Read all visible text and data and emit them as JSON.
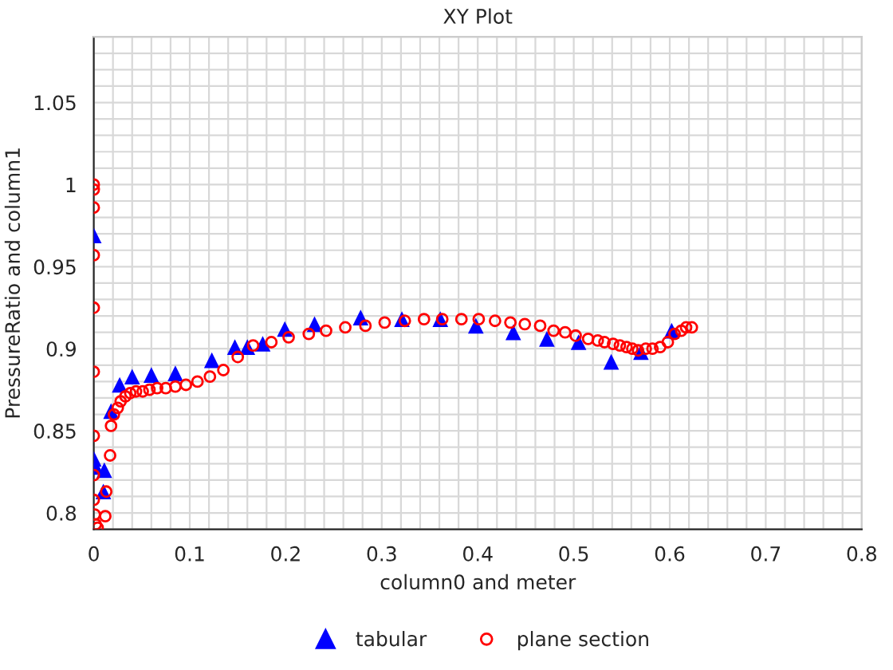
{
  "chart_data": {
    "type": "scatter",
    "title": "XY Plot",
    "xlabel": "column0 and meter",
    "ylabel": "PressureRatio and column1",
    "xlim": [
      0,
      0.8
    ],
    "ylim": [
      0.79,
      1.09
    ],
    "xticks": [
      {
        "value": 0,
        "label": "0"
      },
      0.1,
      0.2,
      0.3,
      0.4,
      0.5,
      0.6,
      0.7,
      0.8
    ],
    "yticks": [
      0.8,
      0.85,
      0.9,
      0.95,
      {
        "value": 1,
        "label": "1"
      },
      1.05
    ],
    "grid": true,
    "legend": "bottom",
    "series": [
      {
        "name": "tabular",
        "color": "#0000ff",
        "marker": "triangle",
        "x": [
          0.0,
          0.0,
          0.002,
          0.011,
          0.01,
          0.018,
          0.027,
          0.04,
          0.06,
          0.085,
          0.123,
          0.147,
          0.16,
          0.176,
          0.199,
          0.23,
          0.278,
          0.321,
          0.361,
          0.398,
          0.437,
          0.472,
          0.505,
          0.539,
          0.57,
          0.602
        ],
        "values": [
          0.969,
          0.833,
          0.828,
          0.826,
          0.813,
          0.862,
          0.878,
          0.883,
          0.884,
          0.885,
          0.893,
          0.901,
          0.901,
          0.903,
          0.912,
          0.915,
          0.919,
          0.918,
          0.918,
          0.914,
          0.91,
          0.906,
          0.904,
          0.892,
          0.898,
          0.911
        ]
      },
      {
        "name": "plane section",
        "color": "#ff0000",
        "marker": "circle",
        "x": [
          0.0,
          0.0,
          0.0,
          0.0,
          0.0,
          0.0,
          0.0,
          0.0,
          0.0,
          0.001,
          0.002,
          0.004,
          0.012,
          0.013,
          0.017,
          0.018,
          0.021,
          0.025,
          0.028,
          0.033,
          0.038,
          0.044,
          0.051,
          0.058,
          0.066,
          0.075,
          0.085,
          0.096,
          0.108,
          0.121,
          0.135,
          0.15,
          0.166,
          0.185,
          0.203,
          0.224,
          0.242,
          0.262,
          0.283,
          0.303,
          0.324,
          0.344,
          0.363,
          0.383,
          0.401,
          0.418,
          0.434,
          0.449,
          0.465,
          0.479,
          0.491,
          0.502,
          0.515,
          0.525,
          0.532,
          0.541,
          0.548,
          0.555,
          0.561,
          0.567,
          0.575,
          0.582,
          0.59,
          0.598,
          0.605,
          0.612,
          0.617,
          0.623
        ],
        "values": [
          1.0,
          0.997,
          0.986,
          0.957,
          0.925,
          0.886,
          0.847,
          0.823,
          0.808,
          0.799,
          0.793,
          0.791,
          0.798,
          0.813,
          0.835,
          0.853,
          0.86,
          0.864,
          0.868,
          0.871,
          0.873,
          0.874,
          0.874,
          0.875,
          0.876,
          0.876,
          0.877,
          0.878,
          0.88,
          0.883,
          0.887,
          0.895,
          0.902,
          0.904,
          0.907,
          0.909,
          0.911,
          0.913,
          0.914,
          0.916,
          0.917,
          0.918,
          0.918,
          0.918,
          0.918,
          0.917,
          0.916,
          0.915,
          0.914,
          0.911,
          0.91,
          0.908,
          0.906,
          0.905,
          0.904,
          0.903,
          0.902,
          0.901,
          0.9,
          0.899,
          0.9,
          0.9,
          0.901,
          0.904,
          0.909,
          0.911,
          0.913,
          0.913
        ]
      }
    ]
  }
}
